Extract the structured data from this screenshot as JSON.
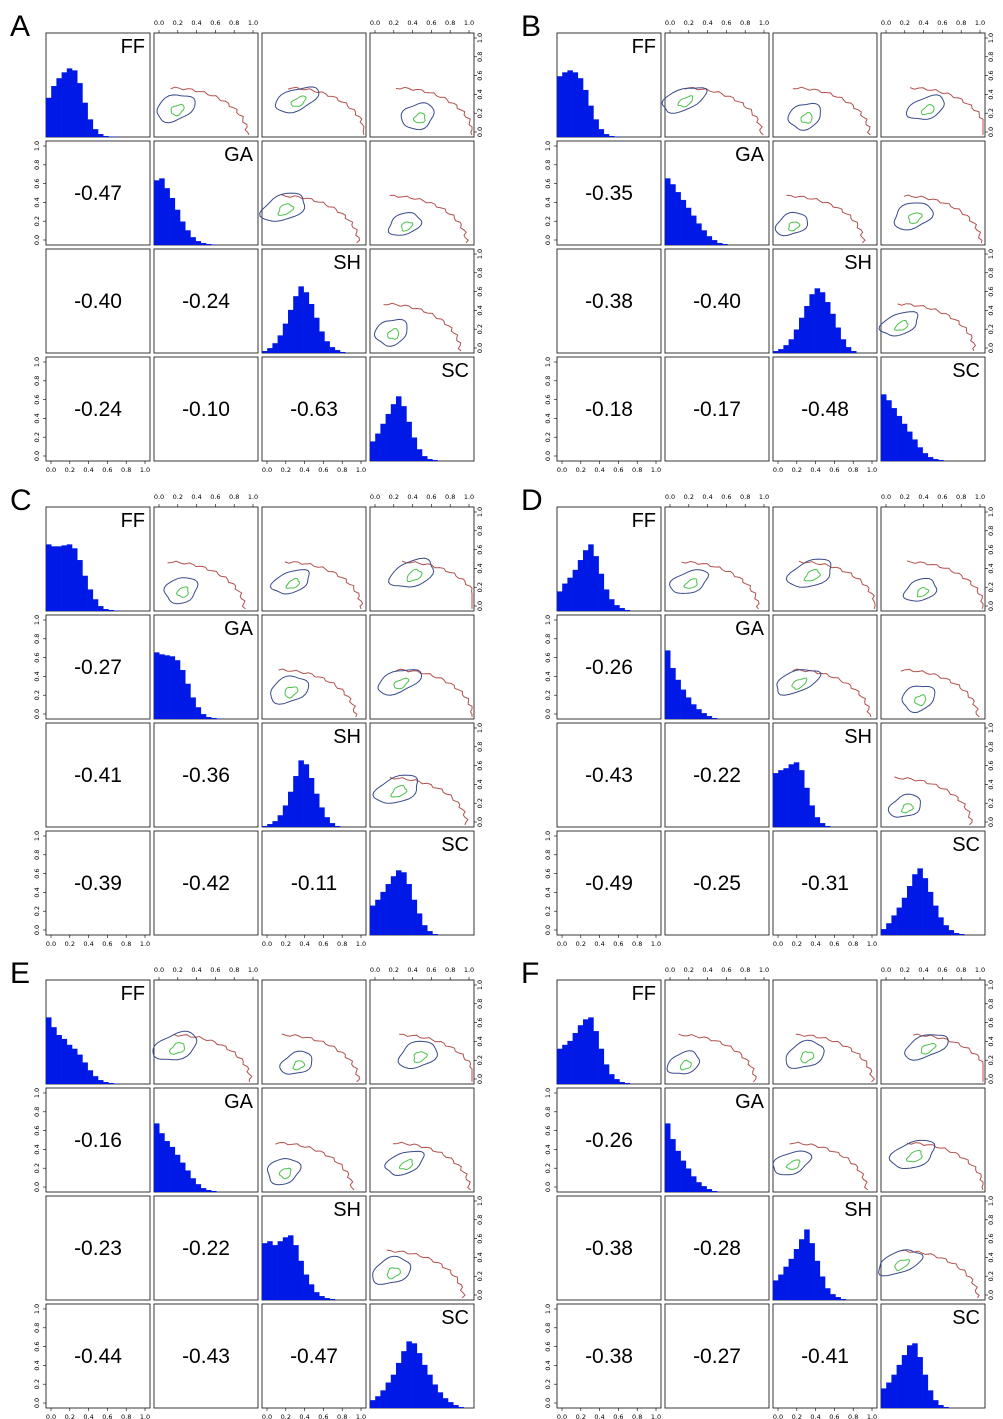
{
  "chart_data": [
    {
      "panel": "A",
      "type": "pair-plot",
      "variables": [
        "FF",
        "GA",
        "SH",
        "SC"
      ],
      "diagonal": "histogram",
      "upper": "contour",
      "lower": "correlation",
      "axis_ticks": [
        "0.0",
        "0.2",
        "0.4",
        "0.6",
        "0.8",
        "1.0"
      ],
      "correlations": [
        {
          "row": "GA",
          "col": "FF",
          "value": "-0.47"
        },
        {
          "row": "SH",
          "col": "FF",
          "value": "-0.40"
        },
        {
          "row": "SH",
          "col": "GA",
          "value": "-0.24"
        },
        {
          "row": "SC",
          "col": "FF",
          "value": "-0.24"
        },
        {
          "row": "SC",
          "col": "GA",
          "value": "-0.10"
        },
        {
          "row": "SC",
          "col": "SH",
          "value": "-0.63"
        }
      ],
      "histograms": [
        [
          0.4,
          0.52,
          0.6,
          0.66,
          0.7,
          0.68,
          0.55,
          0.35,
          0.18,
          0.08,
          0.03,
          0.01,
          0.005,
          0.003,
          0,
          0,
          0,
          0,
          0,
          0
        ],
        [
          0.66,
          0.68,
          0.58,
          0.48,
          0.36,
          0.24,
          0.15,
          0.08,
          0.04,
          0.02,
          0.01,
          0.005,
          0,
          0,
          0,
          0,
          0,
          0,
          0,
          0
        ],
        [
          0.02,
          0.05,
          0.1,
          0.18,
          0.3,
          0.44,
          0.58,
          0.68,
          0.62,
          0.5,
          0.36,
          0.22,
          0.12,
          0.06,
          0.03,
          0.01,
          0,
          0,
          0,
          0
        ],
        [
          0.2,
          0.28,
          0.38,
          0.48,
          0.58,
          0.66,
          0.56,
          0.4,
          0.24,
          0.12,
          0.05,
          0.02,
          0.01,
          0,
          0,
          0,
          0,
          0,
          0,
          0
        ]
      ]
    },
    {
      "panel": "B",
      "type": "pair-plot",
      "variables": [
        "FF",
        "GA",
        "SH",
        "SC"
      ],
      "diagonal": "histogram",
      "upper": "contour",
      "lower": "correlation",
      "axis_ticks": [
        "0.0",
        "0.2",
        "0.4",
        "0.6",
        "0.8",
        "1.0"
      ],
      "correlations": [
        {
          "row": "GA",
          "col": "FF",
          "value": "-0.35"
        },
        {
          "row": "SH",
          "col": "FF",
          "value": "-0.38"
        },
        {
          "row": "SH",
          "col": "GA",
          "value": "-0.40"
        },
        {
          "row": "SC",
          "col": "FF",
          "value": "-0.18"
        },
        {
          "row": "SC",
          "col": "GA",
          "value": "-0.17"
        },
        {
          "row": "SC",
          "col": "SH",
          "value": "-0.48"
        }
      ],
      "histograms": [
        [
          0.62,
          0.66,
          0.68,
          0.66,
          0.6,
          0.48,
          0.32,
          0.18,
          0.08,
          0.03,
          0.01,
          0.005,
          0,
          0,
          0,
          0,
          0,
          0,
          0,
          0
        ],
        [
          0.68,
          0.62,
          0.54,
          0.46,
          0.38,
          0.3,
          0.22,
          0.15,
          0.09,
          0.05,
          0.02,
          0.01,
          0,
          0,
          0,
          0,
          0,
          0,
          0,
          0
        ],
        [
          0.02,
          0.04,
          0.08,
          0.14,
          0.24,
          0.36,
          0.48,
          0.6,
          0.66,
          0.62,
          0.52,
          0.4,
          0.26,
          0.14,
          0.06,
          0.02,
          0,
          0,
          0,
          0
        ],
        [
          0.68,
          0.62,
          0.54,
          0.46,
          0.38,
          0.3,
          0.22,
          0.14,
          0.08,
          0.04,
          0.02,
          0.01,
          0,
          0,
          0,
          0,
          0,
          0,
          0,
          0
        ]
      ]
    },
    {
      "panel": "C",
      "type": "pair-plot",
      "variables": [
        "FF",
        "GA",
        "SH",
        "SC"
      ],
      "diagonal": "histogram",
      "upper": "contour",
      "lower": "correlation",
      "axis_ticks": [
        "0.0",
        "0.2",
        "0.4",
        "0.6",
        "0.8",
        "1.0"
      ],
      "correlations": [
        {
          "row": "GA",
          "col": "FF",
          "value": "-0.27"
        },
        {
          "row": "SH",
          "col": "FF",
          "value": "-0.41"
        },
        {
          "row": "SH",
          "col": "GA",
          "value": "-0.36"
        },
        {
          "row": "SC",
          "col": "FF",
          "value": "-0.39"
        },
        {
          "row": "SC",
          "col": "GA",
          "value": "-0.42"
        },
        {
          "row": "SC",
          "col": "SH",
          "value": "-0.11"
        }
      ],
      "histograms": [
        [
          0.68,
          0.66,
          0.66,
          0.67,
          0.68,
          0.64,
          0.52,
          0.36,
          0.22,
          0.12,
          0.05,
          0.02,
          0.01,
          0.005,
          0,
          0,
          0,
          0,
          0,
          0
        ],
        [
          0.68,
          0.66,
          0.65,
          0.64,
          0.6,
          0.5,
          0.36,
          0.22,
          0.12,
          0.05,
          0.02,
          0.01,
          0.005,
          0,
          0,
          0,
          0,
          0,
          0,
          0
        ],
        [
          0.01,
          0.03,
          0.06,
          0.12,
          0.22,
          0.36,
          0.52,
          0.68,
          0.64,
          0.5,
          0.34,
          0.2,
          0.1,
          0.04,
          0.01,
          0,
          0,
          0,
          0,
          0
        ],
        [
          0.3,
          0.36,
          0.44,
          0.52,
          0.6,
          0.66,
          0.64,
          0.52,
          0.36,
          0.22,
          0.1,
          0.04,
          0.01,
          0,
          0,
          0,
          0,
          0,
          0,
          0
        ]
      ]
    },
    {
      "panel": "D",
      "type": "pair-plot",
      "variables": [
        "FF",
        "GA",
        "SH",
        "SC"
      ],
      "diagonal": "histogram",
      "upper": "contour",
      "lower": "correlation",
      "axis_ticks": [
        "0.0",
        "0.2",
        "0.4",
        "0.6",
        "0.8",
        "1.0"
      ],
      "correlations": [
        {
          "row": "GA",
          "col": "FF",
          "value": "-0.26"
        },
        {
          "row": "SH",
          "col": "FF",
          "value": "-0.43"
        },
        {
          "row": "SH",
          "col": "GA",
          "value": "-0.22"
        },
        {
          "row": "SC",
          "col": "FF",
          "value": "-0.49"
        },
        {
          "row": "SC",
          "col": "GA",
          "value": "-0.25"
        },
        {
          "row": "SC",
          "col": "SH",
          "value": "-0.31"
        }
      ],
      "histograms": [
        [
          0.2,
          0.28,
          0.34,
          0.42,
          0.52,
          0.62,
          0.68,
          0.56,
          0.38,
          0.22,
          0.12,
          0.06,
          0.03,
          0.01,
          0,
          0,
          0,
          0,
          0,
          0
        ],
        [
          0.7,
          0.52,
          0.4,
          0.3,
          0.22,
          0.15,
          0.1,
          0.06,
          0.03,
          0.01,
          0,
          0,
          0,
          0,
          0,
          0,
          0,
          0,
          0,
          0
        ],
        [
          0.55,
          0.58,
          0.6,
          0.64,
          0.66,
          0.58,
          0.4,
          0.22,
          0.1,
          0.04,
          0.01,
          0,
          0,
          0,
          0,
          0,
          0,
          0,
          0,
          0
        ],
        [
          0.06,
          0.12,
          0.2,
          0.28,
          0.38,
          0.5,
          0.62,
          0.68,
          0.58,
          0.44,
          0.3,
          0.18,
          0.1,
          0.05,
          0.02,
          0.01,
          0,
          0,
          0,
          0
        ]
      ]
    },
    {
      "panel": "E",
      "type": "pair-plot",
      "variables": [
        "FF",
        "GA",
        "SH",
        "SC"
      ],
      "diagonal": "histogram",
      "upper": "contour",
      "lower": "correlation",
      "axis_ticks": [
        "0.0",
        "0.2",
        "0.4",
        "0.6",
        "0.8",
        "1.0"
      ],
      "correlations": [
        {
          "row": "GA",
          "col": "FF",
          "value": "-0.16"
        },
        {
          "row": "SH",
          "col": "FF",
          "value": "-0.23"
        },
        {
          "row": "SH",
          "col": "GA",
          "value": "-0.22"
        },
        {
          "row": "SC",
          "col": "FF",
          "value": "-0.44"
        },
        {
          "row": "SC",
          "col": "GA",
          "value": "-0.43"
        },
        {
          "row": "SC",
          "col": "SH",
          "value": "-0.47"
        }
      ],
      "histograms": [
        [
          0.68,
          0.58,
          0.5,
          0.46,
          0.4,
          0.36,
          0.3,
          0.22,
          0.14,
          0.08,
          0.04,
          0.02,
          0.01,
          0.005,
          0,
          0,
          0,
          0,
          0,
          0
        ],
        [
          0.7,
          0.6,
          0.52,
          0.46,
          0.38,
          0.3,
          0.22,
          0.14,
          0.08,
          0.04,
          0.02,
          0.01,
          0,
          0,
          0,
          0,
          0,
          0,
          0,
          0
        ],
        [
          0.58,
          0.6,
          0.56,
          0.6,
          0.64,
          0.66,
          0.56,
          0.4,
          0.26,
          0.16,
          0.08,
          0.04,
          0.02,
          0.01,
          0,
          0,
          0,
          0,
          0,
          0
        ],
        [
          0.08,
          0.12,
          0.18,
          0.26,
          0.34,
          0.46,
          0.58,
          0.68,
          0.66,
          0.56,
          0.44,
          0.34,
          0.24,
          0.16,
          0.1,
          0.06,
          0.03,
          0.01,
          0,
          0
        ]
      ]
    },
    {
      "panel": "F",
      "type": "pair-plot",
      "variables": [
        "FF",
        "GA",
        "SH",
        "SC"
      ],
      "diagonal": "histogram",
      "upper": "contour",
      "lower": "correlation",
      "axis_ticks": [
        "0.0",
        "0.2",
        "0.4",
        "0.6",
        "0.8",
        "1.0"
      ],
      "correlations": [
        {
          "row": "GA",
          "col": "FF",
          "value": "-0.26"
        },
        {
          "row": "SH",
          "col": "FF",
          "value": "-0.38"
        },
        {
          "row": "SH",
          "col": "GA",
          "value": "-0.28"
        },
        {
          "row": "SC",
          "col": "FF",
          "value": "-0.38"
        },
        {
          "row": "SC",
          "col": "GA",
          "value": "-0.27"
        },
        {
          "row": "SC",
          "col": "SH",
          "value": "-0.41"
        }
      ],
      "histograms": [
        [
          0.36,
          0.4,
          0.44,
          0.52,
          0.6,
          0.66,
          0.68,
          0.54,
          0.36,
          0.2,
          0.1,
          0.05,
          0.02,
          0.01,
          0,
          0,
          0,
          0,
          0,
          0
        ],
        [
          0.7,
          0.54,
          0.42,
          0.32,
          0.24,
          0.16,
          0.1,
          0.06,
          0.03,
          0.01,
          0,
          0,
          0,
          0,
          0,
          0,
          0,
          0,
          0,
          0
        ],
        [
          0.2,
          0.26,
          0.34,
          0.42,
          0.52,
          0.62,
          0.72,
          0.58,
          0.4,
          0.24,
          0.12,
          0.06,
          0.03,
          0.01,
          0,
          0,
          0,
          0,
          0,
          0
        ],
        [
          0.2,
          0.26,
          0.34,
          0.44,
          0.54,
          0.64,
          0.66,
          0.52,
          0.34,
          0.18,
          0.08,
          0.03,
          0.01,
          0,
          0,
          0,
          0,
          0,
          0,
          0
        ]
      ]
    }
  ],
  "colors": {
    "histogram": "#0019e6",
    "contour_outer": "#b3524d",
    "contour_middle": "#3a4a8a",
    "contour_inner": "#4cc24c",
    "frame": "#222222"
  }
}
